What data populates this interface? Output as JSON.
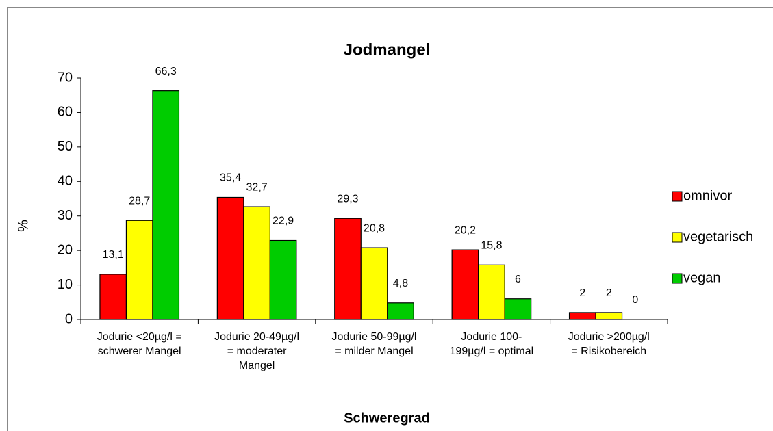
{
  "chart_data": {
    "type": "bar",
    "title": "Jodmangel",
    "x_label": "Schweregrad",
    "y_label": "%",
    "categories": [
      "Jodurie <20µg/l =\nschwerer Mangel",
      "Jodurie 20-49µg/l\n= moderater\nMangel",
      "Jodurie 50-99µg/l\n= milder Mangel",
      "Jodurie 100-\n199µg/l = optimal",
      "Jodurie >200µg/l\n= Risikobereich"
    ],
    "series": [
      {
        "name": "omnivor",
        "color": "#ff0000",
        "values": [
          13.1,
          35.4,
          29.3,
          20.2,
          2
        ],
        "value_labels": [
          "13,1",
          "35,4",
          "29,3",
          "20,2",
          "2"
        ]
      },
      {
        "name": "vegetarisch",
        "color": "#ffff00",
        "values": [
          28.7,
          32.7,
          20.8,
          15.8,
          2
        ],
        "value_labels": [
          "28,7",
          "32,7",
          "20,8",
          "15,8",
          "2"
        ]
      },
      {
        "name": "vegan",
        "color": "#00cc00",
        "values": [
          66.3,
          22.9,
          4.8,
          6,
          0
        ],
        "value_labels": [
          "66,3",
          "22,9",
          "4,8",
          "6",
          "0"
        ]
      }
    ],
    "ylim": [
      0,
      70
    ],
    "yticks": [
      0,
      10,
      20,
      30,
      40,
      50,
      60,
      70
    ],
    "grid": false,
    "legend": "right"
  }
}
